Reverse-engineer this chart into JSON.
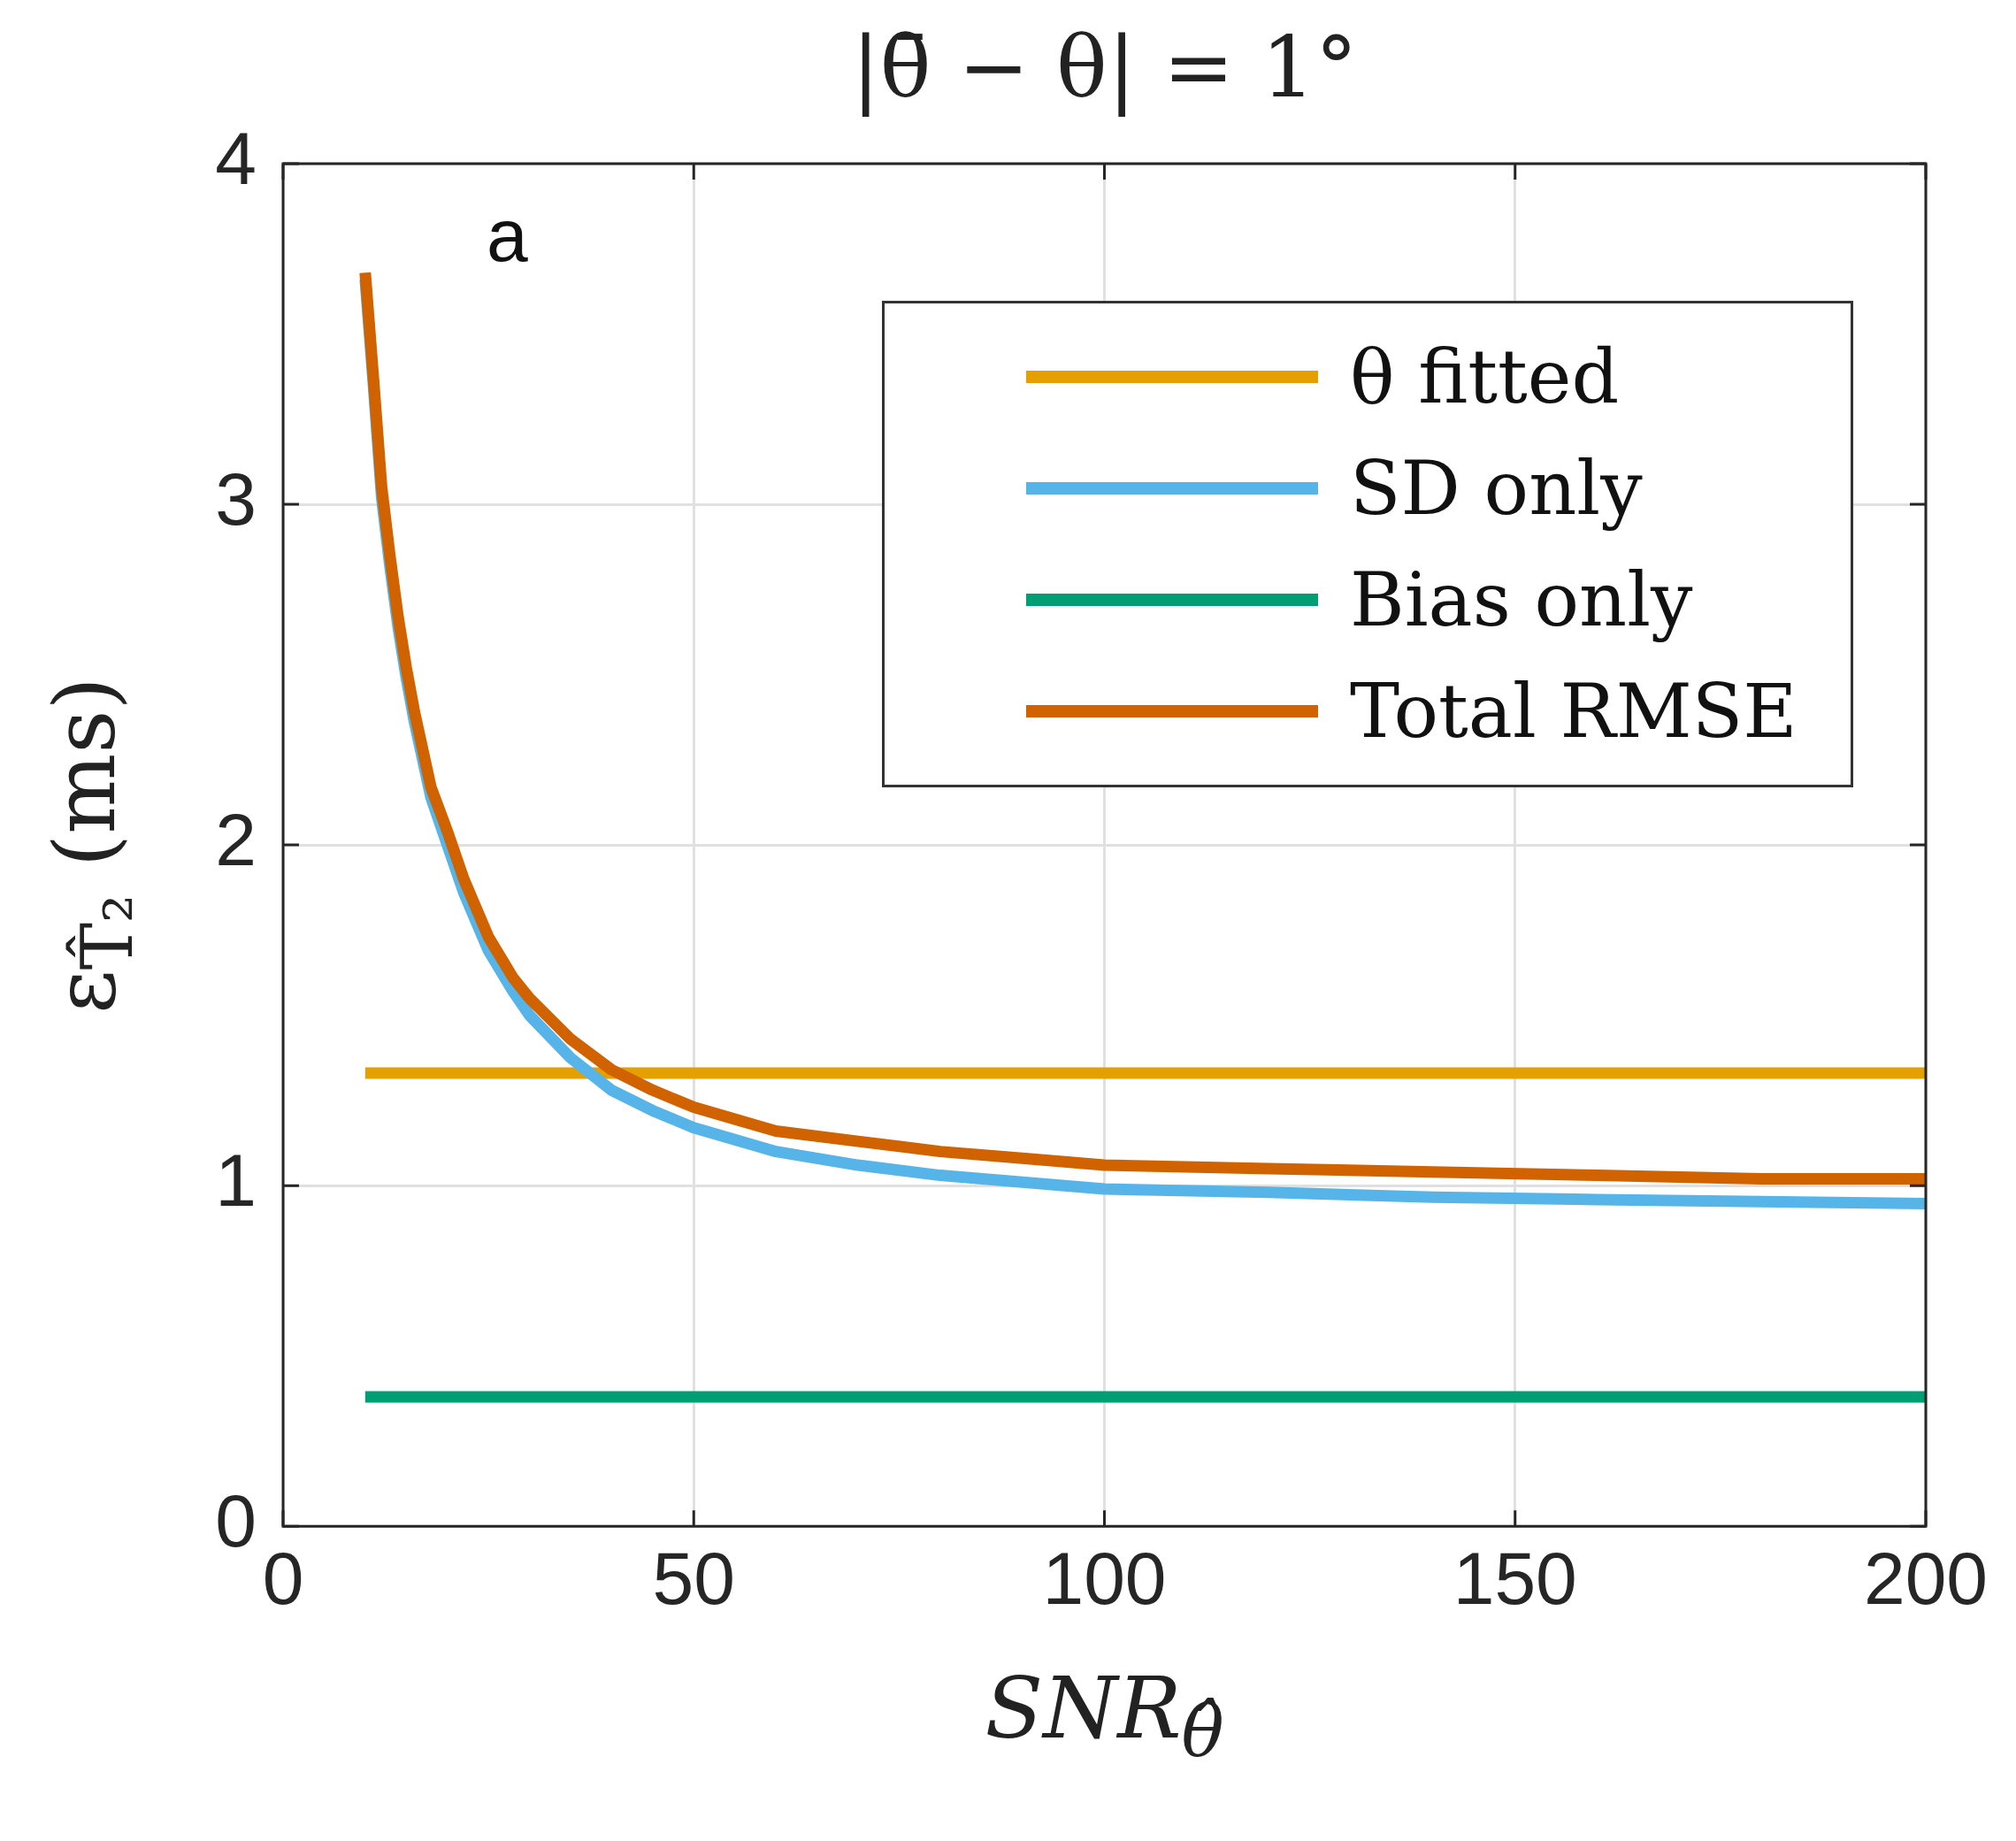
{
  "chart_data": {
    "type": "line",
    "title": "|θ̄ − θ| = 1°",
    "xlabel": "SNR$_{θ̂}$",
    "ylabel": "ε$_{T̂₂}$ (ms)",
    "annotations": [
      "a"
    ],
    "xlim": [
      0,
      200
    ],
    "xticks": [
      0,
      50,
      100,
      150,
      200
    ],
    "ylim": [
      0,
      4
    ],
    "yticks": [
      0,
      1,
      2,
      3,
      4
    ],
    "grid": true,
    "legend": "top right",
    "series": [
      {
        "name": "θ fitted",
        "color": "#e69f00",
        "x": [
          10,
          200
        ],
        "values": [
          1.33,
          1.33
        ]
      },
      {
        "name": "SD only",
        "color": "#56b4e9",
        "x": [
          10,
          11,
          12,
          13,
          14,
          15,
          16,
          18,
          20,
          22,
          25,
          28,
          30,
          35,
          40,
          45,
          50,
          60,
          70,
          80,
          90,
          100,
          120,
          140,
          160,
          180,
          200
        ],
        "values": [
          3.66,
          3.35,
          3.02,
          2.82,
          2.64,
          2.49,
          2.36,
          2.14,
          2.0,
          1.86,
          1.69,
          1.57,
          1.5,
          1.375,
          1.28,
          1.22,
          1.17,
          1.1,
          1.06,
          1.03,
          1.01,
          0.99,
          0.98,
          0.966,
          0.959,
          0.953,
          0.947
        ]
      },
      {
        "name": "Bias only",
        "color": "#009e73",
        "x": [
          10,
          200
        ],
        "values": [
          0.38,
          0.38
        ]
      },
      {
        "name": "Total RMSE",
        "color": "#d06200",
        "x": [
          10,
          11,
          12,
          13,
          14,
          15,
          16,
          18,
          20,
          22,
          25,
          28,
          30,
          35,
          40,
          45,
          50,
          60,
          70,
          80,
          90,
          100,
          120,
          140,
          160,
          180,
          200
        ],
        "values": [
          3.68,
          3.37,
          3.05,
          2.85,
          2.67,
          2.52,
          2.39,
          2.17,
          2.04,
          1.9,
          1.73,
          1.61,
          1.55,
          1.43,
          1.34,
          1.28,
          1.23,
          1.16,
          1.13,
          1.1,
          1.08,
          1.06,
          1.05,
          1.04,
          1.03,
          1.02,
          1.02
        ]
      }
    ]
  }
}
